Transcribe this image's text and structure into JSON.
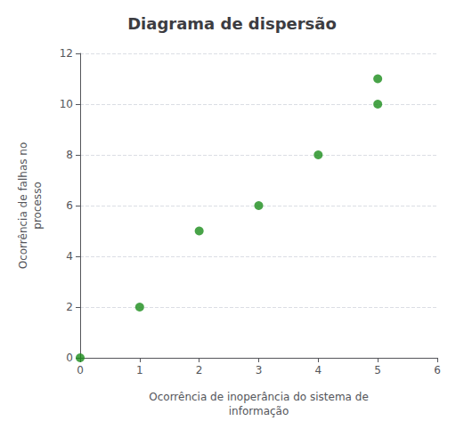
{
  "chart_data": {
    "type": "scatter",
    "title": "Diagrama de dispersão",
    "xlabel": "Ocorrência de inoperância do sistema de\ninformação",
    "ylabel": "Ocorrência de falhas no\nprocesso",
    "x": [
      0,
      1,
      2,
      3,
      4,
      5,
      5
    ],
    "values": [
      0,
      2,
      5,
      6,
      8,
      11,
      10
    ],
    "color": "#1a8c1a",
    "xlim": [
      0,
      6
    ],
    "xticks": [
      0,
      1,
      2,
      3,
      4,
      5,
      6
    ],
    "ylim": [
      0,
      12
    ],
    "yticks": [
      0,
      2,
      4,
      6,
      8,
      10,
      12
    ],
    "grid": true
  }
}
